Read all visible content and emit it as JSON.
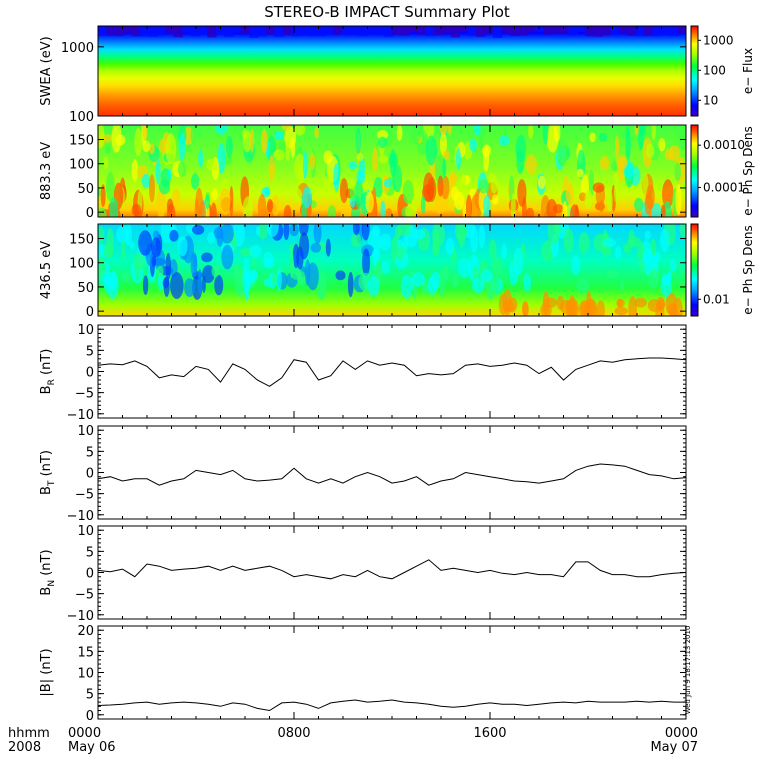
{
  "title": "STEREO-B IMPACT Summary Plot",
  "timestamp": "Wed Jun  9 18:17:13 2010",
  "time_axis": {
    "row1": [
      "hhmm",
      "2008"
    ],
    "ticks": [
      {
        "hhmm": "0000",
        "date": "May 06"
      },
      {
        "hhmm": "0800",
        "date": ""
      },
      {
        "hhmm": "1600",
        "date": ""
      },
      {
        "hhmm": "0000",
        "date": "May 07"
      }
    ],
    "range_hours": [
      0,
      24
    ]
  },
  "chart_data": [
    {
      "type": "heatmap",
      "ylabel": "SWEA (eV)",
      "yscale": "log",
      "ylim": [
        100,
        2000
      ],
      "yticks": [
        "1000",
        "100"
      ],
      "yticks_values": [
        1000,
        100
      ],
      "colorbar": {
        "label": "e− Flux",
        "scale": "log",
        "range": [
          3,
          3000
        ],
        "ticks": [
          "1000",
          "100",
          "10"
        ],
        "tick_values": [
          1000,
          100,
          10
        ]
      }
    },
    {
      "type": "heatmap",
      "ylabel": "883.3 eV",
      "ylim": [
        -10,
        180
      ],
      "yticks": [
        "150",
        "100",
        "50",
        "0"
      ],
      "yticks_values": [
        150,
        100,
        50,
        0
      ],
      "colorbar": {
        "label": "e− Ph Sp Dens",
        "scale": "log",
        "range": [
          2e-05,
          0.003
        ],
        "ticks": [
          "0.0010",
          "0.0001"
        ],
        "tick_values": [
          0.001,
          0.0001
        ]
      }
    },
    {
      "type": "heatmap",
      "ylabel": "436.5 eV",
      "ylim": [
        -10,
        180
      ],
      "yticks": [
        "150",
        "100",
        "50",
        "0"
      ],
      "yticks_values": [
        150,
        100,
        50,
        0
      ],
      "colorbar": {
        "label": "e− Ph Sp Dens",
        "scale": "log",
        "range": [
          0.006,
          0.1
        ],
        "ticks": [
          "0.01"
        ],
        "tick_values": [
          0.01
        ]
      }
    },
    {
      "type": "line",
      "ylabel": "B",
      "ysub": "R",
      "yunit": "(nT)",
      "ylim": [
        -11,
        11
      ],
      "yticks": [
        "10",
        "5",
        "0",
        "−5",
        "−10"
      ],
      "yticks_values": [
        10,
        5,
        0,
        -5,
        -10
      ],
      "x": [
        0,
        0.5,
        1,
        1.5,
        2,
        2.5,
        3,
        3.5,
        4,
        4.5,
        5,
        5.5,
        6,
        6.5,
        7,
        7.5,
        8,
        8.5,
        9,
        9.5,
        10,
        10.5,
        11,
        11.5,
        12,
        12.5,
        13,
        13.5,
        14,
        14.5,
        15,
        15.5,
        16,
        16.5,
        17,
        17.5,
        18,
        18.5,
        19,
        19.5,
        20,
        20.5,
        21,
        21.5,
        22,
        22.5,
        23,
        23.5,
        24
      ],
      "y": [
        1.5,
        1.8,
        1.6,
        2.5,
        1.2,
        -1.5,
        -0.8,
        -1.2,
        1.2,
        0.5,
        -2.5,
        1.8,
        0.5,
        -2.0,
        -3.5,
        -1.5,
        2.8,
        2.2,
        -2.0,
        -1.0,
        2.5,
        0.5,
        2.5,
        1.5,
        2.0,
        1.5,
        -1.0,
        -0.5,
        -0.8,
        -0.5,
        1.5,
        1.8,
        1.2,
        1.5,
        2.0,
        1.5,
        -0.5,
        1.0,
        -2.0,
        0.5,
        1.5,
        2.5,
        2.2,
        2.8,
        3.0,
        3.2,
        3.2,
        3.0,
        2.8
      ]
    },
    {
      "type": "line",
      "ylabel": "B",
      "ysub": "T",
      "yunit": "(nT)",
      "ylim": [
        -11,
        11
      ],
      "yticks": [
        "10",
        "5",
        "0",
        "−5",
        "−10"
      ],
      "yticks_values": [
        10,
        5,
        0,
        -5,
        -10
      ],
      "x": [
        0,
        0.5,
        1,
        1.5,
        2,
        2.5,
        3,
        3.5,
        4,
        4.5,
        5,
        5.5,
        6,
        6.5,
        7,
        7.5,
        8,
        8.5,
        9,
        9.5,
        10,
        10.5,
        11,
        11.5,
        12,
        12.5,
        13,
        13.5,
        14,
        14.5,
        15,
        15.5,
        16,
        16.5,
        17,
        17.5,
        18,
        18.5,
        19,
        19.5,
        20,
        20.5,
        21,
        21.5,
        22,
        22.5,
        23,
        23.5,
        24
      ],
      "y": [
        -1.5,
        -1.0,
        -2.0,
        -1.5,
        -1.5,
        -3.0,
        -2.0,
        -1.5,
        0.5,
        0.0,
        -0.5,
        0.5,
        -1.5,
        -2.0,
        -1.8,
        -1.5,
        1.0,
        -1.5,
        -2.5,
        -1.5,
        -2.5,
        -1.0,
        0.0,
        -1.0,
        -2.5,
        -2.0,
        -1.0,
        -3.0,
        -2.0,
        -1.5,
        0.0,
        -0.5,
        -1.0,
        -1.5,
        -2.0,
        -2.2,
        -2.5,
        -2.0,
        -1.5,
        0.5,
        1.5,
        2.0,
        1.8,
        1.5,
        0.5,
        -0.5,
        -0.8,
        -1.5,
        -1.2
      ]
    },
    {
      "type": "line",
      "ylabel": "B",
      "ysub": "N",
      "yunit": "(nT)",
      "ylim": [
        -11,
        11
      ],
      "yticks": [
        "10",
        "5",
        "0",
        "−5",
        "−10"
      ],
      "yticks_values": [
        10,
        5,
        0,
        -5,
        -10
      ],
      "x": [
        0,
        0.5,
        1,
        1.5,
        2,
        2.5,
        3,
        3.5,
        4,
        4.5,
        5,
        5.5,
        6,
        6.5,
        7,
        7.5,
        8,
        8.5,
        9,
        9.5,
        10,
        10.5,
        11,
        11.5,
        12,
        12.5,
        13,
        13.5,
        14,
        14.5,
        15,
        15.5,
        16,
        16.5,
        17,
        17.5,
        18,
        18.5,
        19,
        19.5,
        20,
        20.5,
        21,
        21.5,
        22,
        22.5,
        23,
        23.5,
        24
      ],
      "y": [
        0.5,
        0.2,
        0.8,
        -1.0,
        2.0,
        1.5,
        0.5,
        0.8,
        1.0,
        1.5,
        0.5,
        1.5,
        0.5,
        1.0,
        1.5,
        0.5,
        -1.0,
        -0.5,
        -1.0,
        -1.5,
        -0.5,
        -1.0,
        0.5,
        -1.0,
        -1.5,
        0.0,
        1.5,
        3.0,
        0.5,
        1.0,
        0.5,
        0.0,
        0.5,
        -0.2,
        -0.5,
        0.0,
        -0.5,
        -0.5,
        -1.0,
        2.5,
        2.5,
        0.5,
        -0.5,
        -0.5,
        -1.0,
        -1.0,
        -0.5,
        -0.2,
        0.0
      ]
    },
    {
      "type": "line",
      "ylabel": "|B|",
      "ysub": "",
      "yunit": "(nT)",
      "ylim": [
        -1,
        21
      ],
      "yticks": [
        "20",
        "15",
        "10",
        "5",
        "0"
      ],
      "yticks_values": [
        20,
        15,
        10,
        5,
        0
      ],
      "x": [
        0,
        0.5,
        1,
        1.5,
        2,
        2.5,
        3,
        3.5,
        4,
        4.5,
        5,
        5.5,
        6,
        6.5,
        7,
        7.5,
        8,
        8.5,
        9,
        9.5,
        10,
        10.5,
        11,
        11.5,
        12,
        12.5,
        13,
        13.5,
        14,
        14.5,
        15,
        15.5,
        16,
        16.5,
        17,
        17.5,
        18,
        18.5,
        19,
        19.5,
        20,
        20.5,
        21,
        21.5,
        22,
        22.5,
        23,
        23.5,
        24
      ],
      "y": [
        2.2,
        2.3,
        2.5,
        2.8,
        3.0,
        2.5,
        2.8,
        3.0,
        2.8,
        2.5,
        2.0,
        2.8,
        2.5,
        1.5,
        1.0,
        2.8,
        3.0,
        2.5,
        1.5,
        2.8,
        3.2,
        3.5,
        3.0,
        3.2,
        3.5,
        3.0,
        2.8,
        2.5,
        2.0,
        1.8,
        2.0,
        2.5,
        2.8,
        2.5,
        2.5,
        2.2,
        2.5,
        2.8,
        3.0,
        2.8,
        3.2,
        3.0,
        3.0,
        3.0,
        3.2,
        3.0,
        3.2,
        3.0,
        3.0
      ]
    }
  ]
}
